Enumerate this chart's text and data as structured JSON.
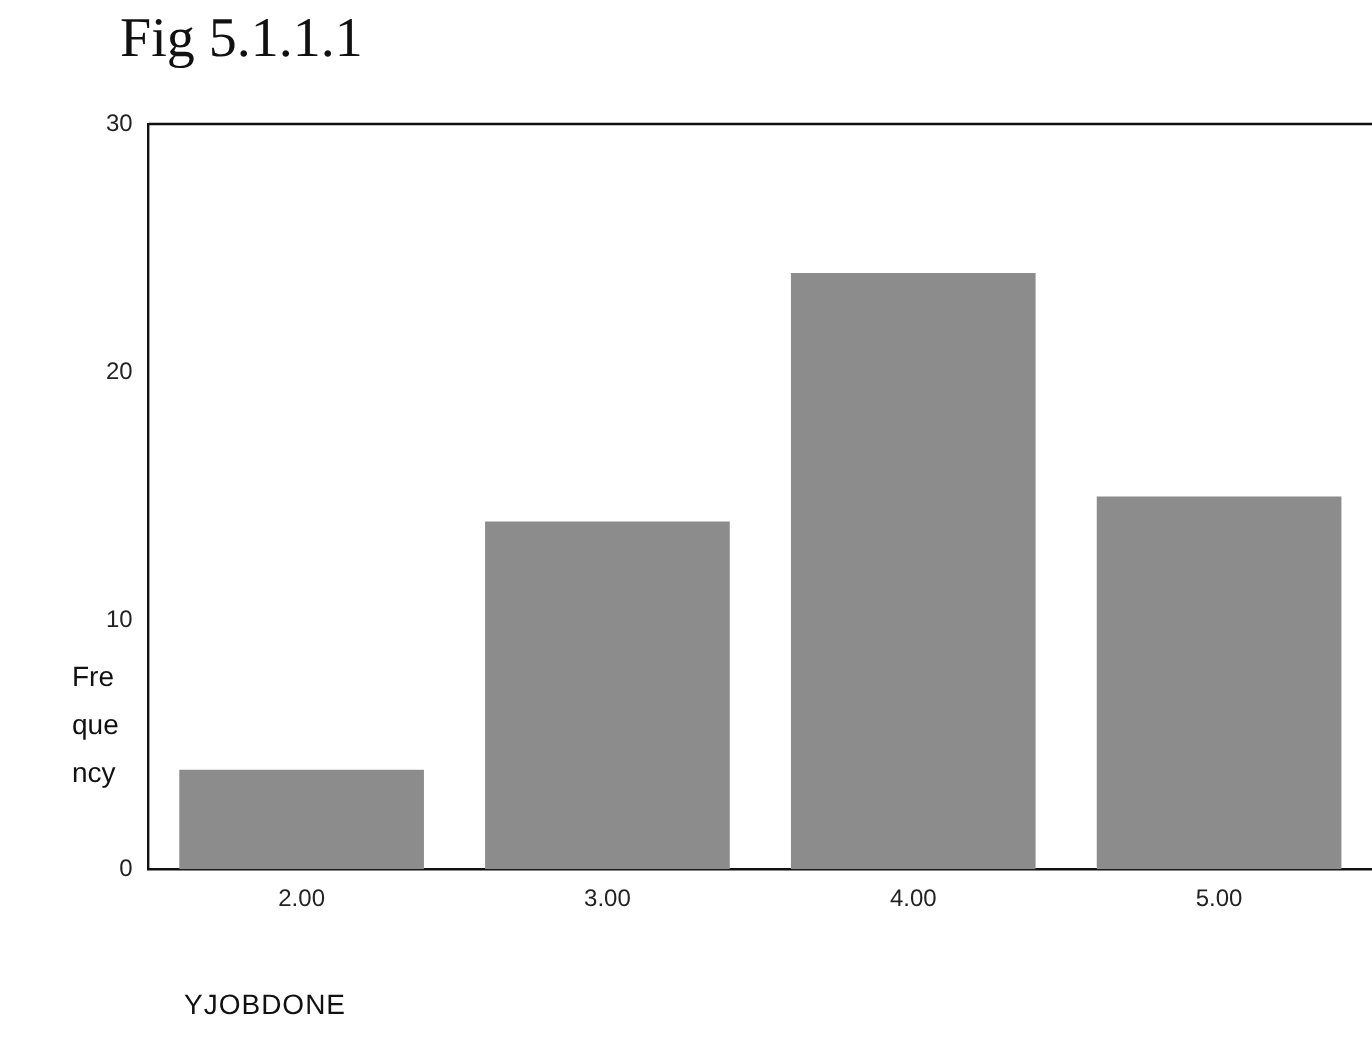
{
  "chart_data": {
    "type": "bar",
    "title": "Fig 5.1.1.1",
    "xlabel": "YJOBDONE",
    "ylabel": "Frequency",
    "categories": [
      "2.00",
      "3.00",
      "4.00",
      "5.00"
    ],
    "values": [
      4,
      14,
      24,
      15
    ],
    "color": "#8c8c8c",
    "ylim": [
      0,
      30
    ],
    "yticks": [
      0,
      10,
      20,
      30
    ],
    "grid": false,
    "legend": false
  }
}
